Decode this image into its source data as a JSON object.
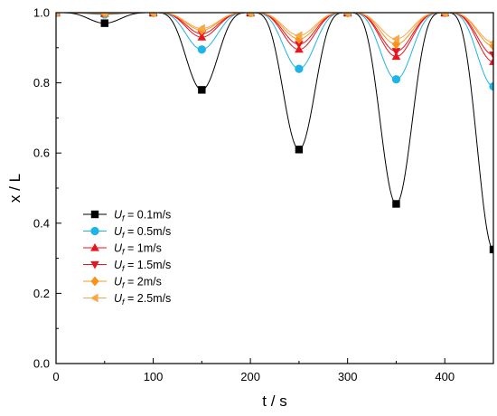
{
  "chart_data": {
    "type": "line",
    "title": "",
    "xlabel": "t / s",
    "ylabel": "x / L",
    "xlim": [
      0,
      450
    ],
    "ylim": [
      0.0,
      1.0
    ],
    "x_ticks": [
      "0",
      "100",
      "200",
      "300",
      "400"
    ],
    "y_ticks": [
      "0.0",
      "0.2",
      "0.4",
      "0.6",
      "0.8",
      "1.0"
    ],
    "x_tick_values": [
      0,
      100,
      200,
      300,
      400
    ],
    "y_tick_values": [
      0.0,
      0.2,
      0.4,
      0.6,
      0.8,
      1.0
    ],
    "marker_x": [
      0,
      50,
      100,
      150,
      200,
      250,
      300,
      350,
      400,
      450
    ],
    "grid": false,
    "legend_position": "middle-left",
    "series": [
      {
        "name": "0.1m/s",
        "color": "#000000",
        "marker": "square",
        "values": [
          1.0,
          0.97,
          1.0,
          0.78,
          1.0,
          0.61,
          1.0,
          0.455,
          1.0,
          0.325
        ]
      },
      {
        "name": "0.5m/s",
        "color": "#1eb4e6",
        "marker": "circle",
        "values": [
          1.0,
          0.995,
          1.0,
          0.895,
          1.0,
          0.84,
          1.0,
          0.81,
          1.0,
          0.79
        ]
      },
      {
        "name": "1m/s",
        "color": "#e8141e",
        "marker": "triangle-up",
        "values": [
          1.0,
          0.997,
          1.0,
          0.93,
          1.0,
          0.895,
          1.0,
          0.875,
          1.0,
          0.86
        ]
      },
      {
        "name": "1.5m/s",
        "color": "#e8141e",
        "marker": "triangle-down",
        "values": [
          1.0,
          0.998,
          1.0,
          0.94,
          1.0,
          0.91,
          1.0,
          0.89,
          1.0,
          0.88
        ]
      },
      {
        "name": "2m/s",
        "color": "#f7941d",
        "marker": "diamond",
        "values": [
          1.0,
          0.998,
          1.0,
          0.95,
          1.0,
          0.925,
          1.0,
          0.91,
          1.0,
          0.905
        ]
      },
      {
        "name": "2.5m/s",
        "color": "#f7a84a",
        "marker": "triangle-left",
        "values": [
          1.0,
          0.999,
          1.0,
          0.955,
          1.0,
          0.935,
          1.0,
          0.925,
          1.0,
          0.915
        ]
      }
    ],
    "legend_prefix": "U",
    "legend_prefix_sub": "f",
    "legend_eq": " = "
  }
}
